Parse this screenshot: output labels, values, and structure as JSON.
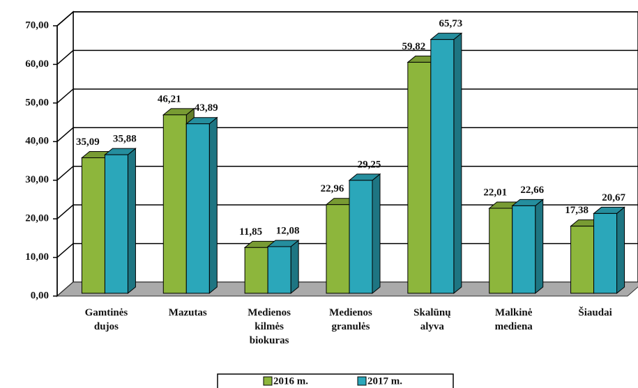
{
  "chart_data": {
    "type": "bar3d",
    "categories": [
      "Gamtinės dujos",
      "Mazutas",
      "Medienos kilmės biokuras",
      "Medienos granulės",
      "Skalūnų alyva",
      "Malkinė mediena",
      "Šiaudai"
    ],
    "series": [
      {
        "name": "2016 m.",
        "color": "#8db63c",
        "values": [
          35.09,
          46.21,
          11.85,
          22.96,
          59.82,
          22.01,
          17.38
        ],
        "value_labels": [
          "35,09",
          "46,21",
          "11,85",
          "22,96",
          "59,82",
          "22,01",
          "17,38"
        ]
      },
      {
        "name": "2017 m.",
        "color": "#2ba7ba",
        "values": [
          35.88,
          43.89,
          12.08,
          29.25,
          65.73,
          22.66,
          20.67
        ],
        "value_labels": [
          "35,88",
          "43,89",
          "12,08",
          "29,25",
          "65,73",
          "22,66",
          "20,67"
        ]
      }
    ],
    "ylim": [
      0,
      70
    ],
    "yticks": [
      {
        "value": 0,
        "label": "0,00"
      },
      {
        "value": 10,
        "label": "10,00"
      },
      {
        "value": 20,
        "label": "20,00"
      },
      {
        "value": 30,
        "label": "30,00"
      },
      {
        "value": 40,
        "label": "40,00"
      },
      {
        "value": 50,
        "label": "50,00"
      },
      {
        "value": 60,
        "label": "60,00"
      },
      {
        "value": 70,
        "label": "70,00"
      }
    ],
    "grid": true
  }
}
